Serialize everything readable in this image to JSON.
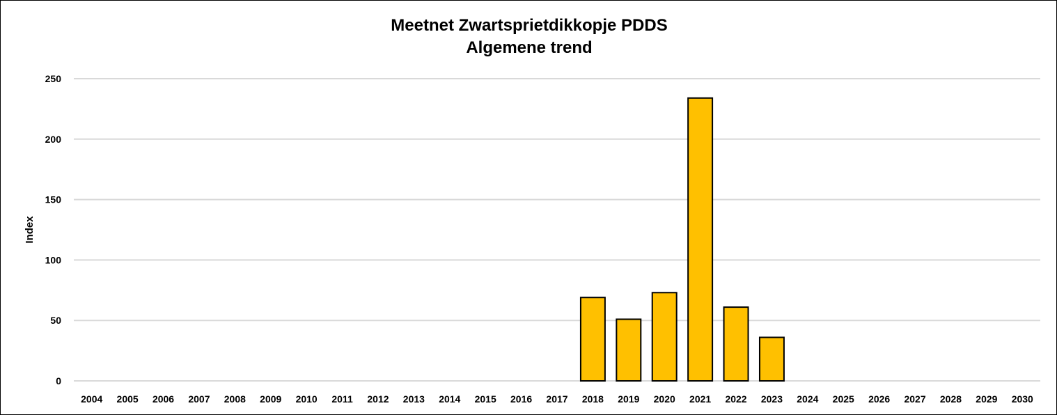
{
  "chart_data": {
    "type": "bar",
    "title": "Meetnet Zwartsprietdikkopje PDDS",
    "subtitle": "Algemene trend",
    "xlabel": "",
    "ylabel": "Index",
    "ylim": [
      0,
      250
    ],
    "yticks": [
      0,
      50,
      100,
      150,
      200,
      250
    ],
    "grid": true,
    "categories": [
      "2004",
      "2005",
      "2006",
      "2007",
      "2008",
      "2009",
      "2010",
      "2011",
      "2012",
      "2013",
      "2014",
      "2015",
      "2016",
      "2017",
      "2018",
      "2019",
      "2020",
      "2021",
      "2022",
      "2023",
      "2024",
      "2025",
      "2026",
      "2027",
      "2028",
      "2029",
      "2030"
    ],
    "values": [
      null,
      null,
      null,
      null,
      null,
      null,
      null,
      null,
      null,
      null,
      null,
      null,
      null,
      null,
      69,
      51,
      73,
      234,
      61,
      36,
      null,
      null,
      null,
      null,
      null,
      null,
      null
    ],
    "bar_color": "#FFC000",
    "bar_outline": "#000000",
    "gridline_color": "#D9D9D9"
  }
}
